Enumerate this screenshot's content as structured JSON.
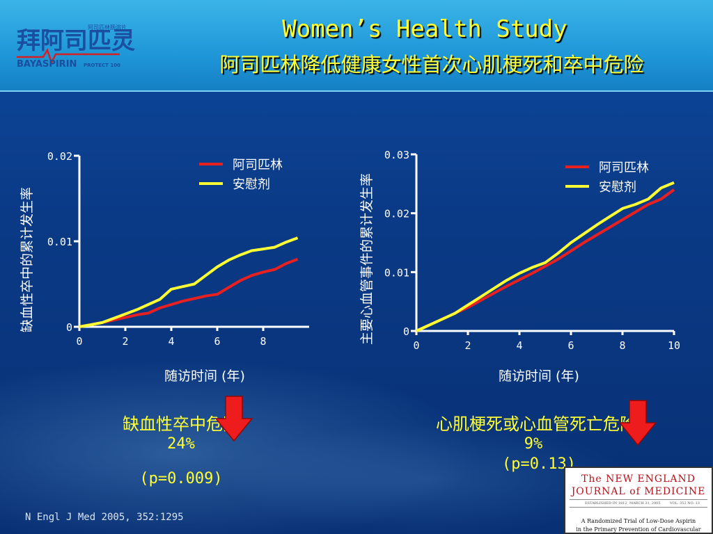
{
  "header": {
    "title": "Women’s Health Study",
    "subtitle": "阿司匹林降低健康女性首次心肌梗死和卒中危险"
  },
  "logo": {
    "brand_cn": "拜阿司匹灵",
    "tag_cn": "阿司匹林肠溶片",
    "brand_en": "BAYASPIRIN",
    "tag_en": "PROTECT 100"
  },
  "colors": {
    "aspirin": "#e82020",
    "placebo": "#ffff33",
    "text_highlight": "#ffff33",
    "arrow": "#ee1c1c"
  },
  "chart_data": [
    {
      "type": "line",
      "ylabel": "缺血性卒中的累计发生率",
      "xlabel": "随访时间 (年)",
      "xlim": [
        0,
        10
      ],
      "ylim": [
        0,
        0.02
      ],
      "x_ticks": [
        "0",
        "2",
        "4",
        "6",
        "8"
      ],
      "y_ticks": [
        "0",
        "0.01",
        "0.02"
      ],
      "legend_position": "top-right",
      "series": [
        {
          "name": "阿司匹林",
          "x": [
            0,
            1,
            1.5,
            2,
            2.5,
            3,
            3.5,
            4,
            4.5,
            5,
            5.5,
            6,
            6.5,
            7,
            7.5,
            8,
            8.5,
            9,
            9.5
          ],
          "values": [
            0,
            0.0005,
            0.0008,
            0.0011,
            0.0014,
            0.0016,
            0.0022,
            0.0026,
            0.003,
            0.0033,
            0.0036,
            0.0038,
            0.0046,
            0.0054,
            0.006,
            0.0064,
            0.0067,
            0.0074,
            0.0079
          ]
        },
        {
          "name": "安慰剂",
          "x": [
            0,
            1,
            1.5,
            2,
            2.5,
            3,
            3.5,
            4,
            4.5,
            5,
            5.5,
            6,
            6.5,
            7,
            7.5,
            8,
            8.5,
            9,
            9.5
          ],
          "values": [
            0,
            0.0005,
            0.001,
            0.0015,
            0.002,
            0.0026,
            0.0032,
            0.0044,
            0.0047,
            0.005,
            0.006,
            0.007,
            0.0078,
            0.0084,
            0.0089,
            0.0091,
            0.0093,
            0.0099,
            0.0104
          ]
        }
      ],
      "risk_label": "缺血性卒中危险",
      "risk_reduction": "24%",
      "p_value": "(p=0.009)"
    },
    {
      "type": "line",
      "ylabel": "主要心血管事件的累计发生率",
      "xlabel": "随访时间 (年)",
      "xlim": [
        0,
        10
      ],
      "ylim": [
        0,
        0.03
      ],
      "x_ticks": [
        "0",
        "2",
        "4",
        "6",
        "8",
        "10"
      ],
      "y_ticks": [
        "0",
        "0.01",
        "0.02",
        "0.03"
      ],
      "legend_position": "top-right",
      "series": [
        {
          "name": "阿司匹林",
          "x": [
            0,
            1,
            1.5,
            2,
            2.5,
            3,
            3.5,
            4,
            4.5,
            5,
            5.5,
            6,
            6.5,
            7,
            7.5,
            8,
            8.5,
            9,
            9.5,
            10
          ],
          "values": [
            0,
            0.002,
            0.003,
            0.004,
            0.0052,
            0.0064,
            0.0076,
            0.0087,
            0.0098,
            0.011,
            0.0122,
            0.0136,
            0.015,
            0.0163,
            0.0176,
            0.0189,
            0.0202,
            0.0215,
            0.0224,
            0.024
          ]
        },
        {
          "name": "安慰剂",
          "x": [
            0,
            1,
            1.5,
            2,
            2.5,
            3,
            3.5,
            4,
            4.5,
            5,
            5.5,
            6,
            6.5,
            7,
            7.5,
            8,
            8.5,
            9,
            9.5,
            10
          ],
          "values": [
            0,
            0.002,
            0.003,
            0.0044,
            0.0058,
            0.0072,
            0.0086,
            0.0098,
            0.0108,
            0.0116,
            0.0132,
            0.015,
            0.0165,
            0.018,
            0.0194,
            0.0208,
            0.0215,
            0.0224,
            0.0243,
            0.0252
          ]
        }
      ],
      "risk_label": "心肌梗死或心血管死亡危险",
      "risk_reduction": "9%",
      "p_value": "(p=0.13)"
    }
  ],
  "citation": "N Engl J Med 2005, 352:1295",
  "journal": {
    "name_line1": "The NEW ENGLAND",
    "name_line2": "JOURNAL of MEDICINE",
    "established": "ESTABLISHED IN 1812",
    "date": "MARCH 31, 2005",
    "volume": "VOL. 352  NO. 13",
    "article_line1": "A Randomized Trial of Low-Dose Aspirin",
    "article_line2": "in the Primary Prevention of Cardiovascular Disease in Women"
  }
}
